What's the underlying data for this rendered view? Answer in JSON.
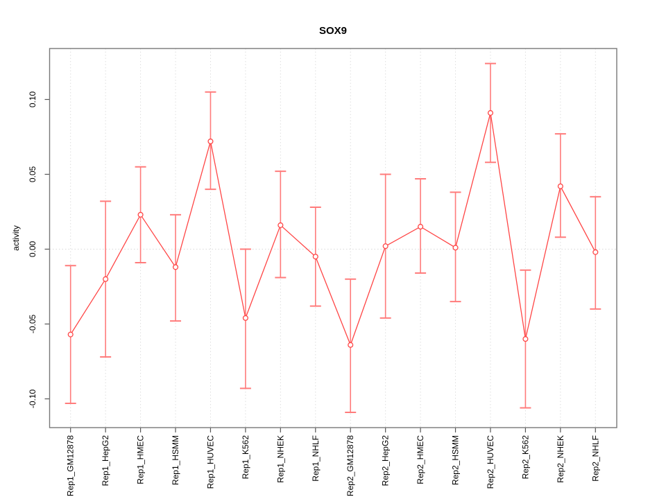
{
  "chart_data": {
    "type": "line",
    "title": "SOX9",
    "xlabel": "",
    "ylabel": "activity",
    "categories": [
      "Rep1_GM12878",
      "Rep1_HepG2",
      "Rep1_HMEC",
      "Rep1_HSMM",
      "Rep1_HUVEC",
      "Rep1_K562",
      "Rep1_NHEK",
      "Rep1_NHLF",
      "Rep2_GM12878",
      "Rep2_HepG2",
      "Rep2_HMEC",
      "Rep2_HSMM",
      "Rep2_HUVEC",
      "Rep2_K562",
      "Rep2_NHEK",
      "Rep2_NHLF"
    ],
    "series": [
      {
        "name": "activity",
        "values": [
          -0.057,
          -0.02,
          0.023,
          -0.012,
          0.072,
          -0.046,
          0.016,
          -0.005,
          -0.064,
          0.002,
          0.015,
          0.001,
          0.091,
          -0.06,
          0.042,
          -0.002
        ],
        "error_upper": [
          -0.011,
          0.032,
          0.055,
          0.023,
          0.105,
          0.0,
          0.052,
          0.028,
          -0.02,
          0.05,
          0.047,
          0.038,
          0.124,
          -0.014,
          0.077,
          0.035
        ],
        "error_lower": [
          -0.103,
          -0.072,
          -0.009,
          -0.048,
          0.04,
          -0.093,
          -0.019,
          -0.038,
          -0.109,
          -0.046,
          -0.016,
          -0.035,
          0.058,
          -0.106,
          0.008,
          -0.04
        ]
      }
    ],
    "yticks": [
      "-0.10",
      "-0.05",
      "0.00",
      "0.05",
      "0.10"
    ],
    "ytick_values": [
      -0.1,
      -0.05,
      0.0,
      0.05,
      0.1
    ],
    "ylim": [
      -0.115,
      0.128
    ],
    "grid": "vertical dotted gridline at each category; dotted horizontal line at y=0",
    "legend": "none",
    "colors": {
      "series_line": "#ff4545",
      "point_stroke": "#ff4545",
      "error_bar": "#ff7b7b",
      "grid_line": "#dedede",
      "zero_line": "#d8d8d8",
      "plot_border": "#777777",
      "tick_mark": "#555555",
      "text": "#000000"
    }
  }
}
